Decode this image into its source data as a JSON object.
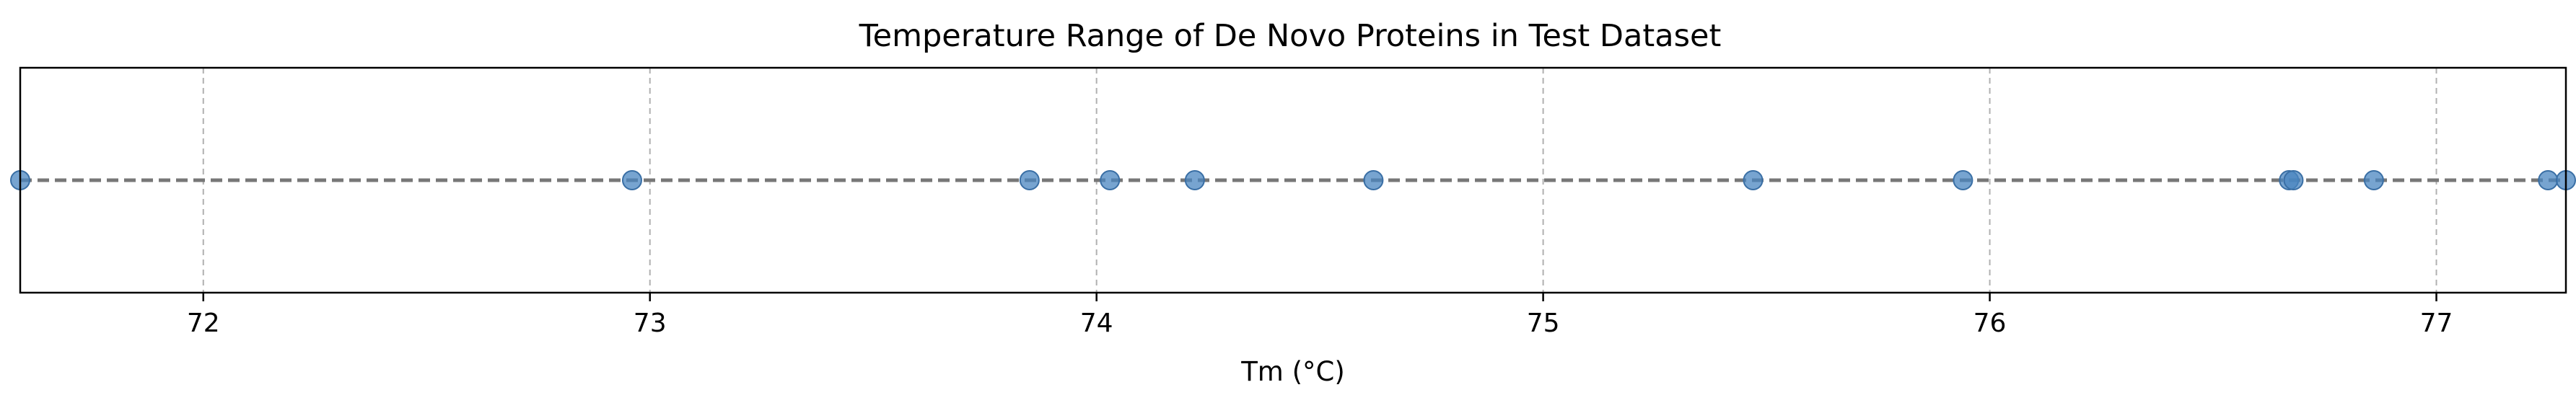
{
  "chart_data": {
    "type": "scatter",
    "title": "Temperature Range of De Novo Proteins in Test Dataset",
    "xlabel": "Tm (°C)",
    "ylabel": "",
    "xlim": [
      71.59,
      77.29
    ],
    "xticks": [
      72,
      73,
      74,
      75,
      76,
      77
    ],
    "xtick_labels": [
      "72",
      "73",
      "74",
      "75",
      "76",
      "77"
    ],
    "grid": true,
    "reference_line": {
      "style": "dashed",
      "color": "#777777"
    },
    "marker_color": "#4a86c0",
    "x": [
      71.59,
      72.96,
      73.85,
      74.03,
      74.22,
      74.62,
      75.47,
      75.94,
      76.67,
      76.68,
      76.86,
      77.25,
      77.29
    ]
  }
}
